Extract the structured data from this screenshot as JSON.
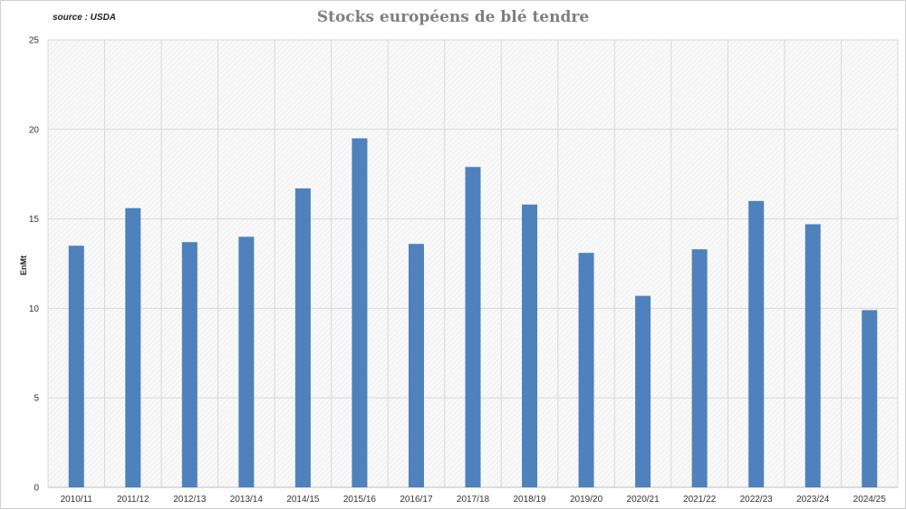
{
  "source_note": "source : USDA",
  "colors": {
    "bar": "#4f81bd",
    "grid": "#d9d9d9",
    "plot_bg": "#f7f7f7"
  },
  "chart_data": {
    "type": "bar",
    "title": "Stocks européens de blé tendre",
    "xlabel": "",
    "ylabel": "EnMt",
    "ylim": [
      0,
      25
    ],
    "yticks": [
      0,
      5,
      10,
      15,
      20,
      25
    ],
    "grid": true,
    "legend": "none",
    "categories": [
      "2010/11",
      "2011/12",
      "2012/13",
      "2013/14",
      "2014/15",
      "2015/16",
      "2016/17",
      "2017/18",
      "2018/19",
      "2019/20",
      "2020/21",
      "2021/22",
      "2022/23",
      "2023/24",
      "2024/25"
    ],
    "values": [
      13.5,
      15.6,
      13.7,
      14.0,
      16.7,
      19.5,
      13.6,
      17.9,
      15.8,
      13.1,
      10.7,
      13.3,
      16.0,
      14.7,
      9.9
    ]
  }
}
